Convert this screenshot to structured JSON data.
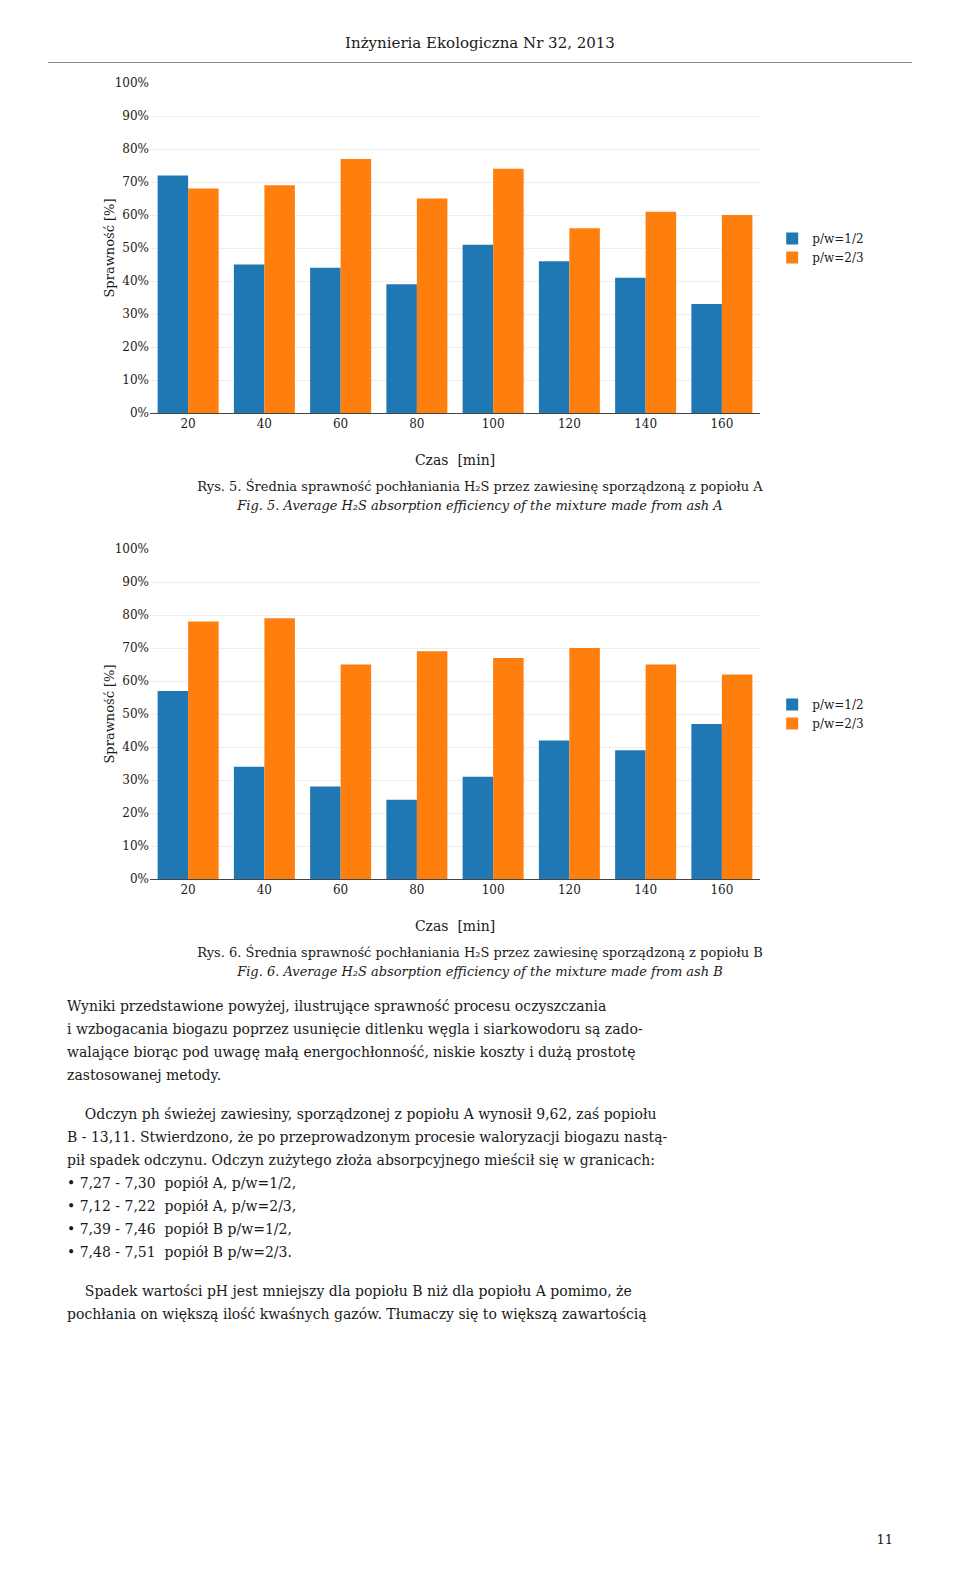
{
  "title": "Inżynieria Ekologiczna Nr 32, 2013",
  "chart_data": [
    {
      "type": "bar",
      "xlabel": "Czas  [min]",
      "ylabel": "Sprawność [%]",
      "categories": [
        "20",
        "40",
        "60",
        "80",
        "100",
        "120",
        "140",
        "160"
      ],
      "series": [
        {
          "name": "p/w=1/2",
          "values": [
            0.72,
            0.45,
            0.44,
            0.39,
            0.51,
            0.46,
            0.41,
            0.33
          ]
        },
        {
          "name": "p/w=2/3",
          "values": [
            0.68,
            0.69,
            0.77,
            0.65,
            0.74,
            0.56,
            0.61,
            0.6
          ]
        }
      ],
      "ylim": [
        0,
        1.0
      ],
      "yticks": [
        {
          "value": 0.0,
          "label": "0%"
        },
        {
          "value": 0.1,
          "label": "10%"
        },
        {
          "value": 0.2,
          "label": "20%"
        },
        {
          "value": 0.3,
          "label": "30%"
        },
        {
          "value": 0.4,
          "label": "40%"
        },
        {
          "value": 0.5,
          "label": "50%"
        },
        {
          "value": 0.6,
          "label": "60%"
        },
        {
          "value": 0.7,
          "label": "70%"
        },
        {
          "value": 0.8,
          "label": "80%"
        },
        {
          "value": 0.9,
          "label": "90%"
        },
        {
          "value": 1.0,
          "label": "100%"
        }
      ],
      "grid": true,
      "legend": "right",
      "annotations": [
        "Rys. 5. Średnia sprawność pochłaniania H₂S przez zawiesinę sporządzoną z popiołu A",
        "Fig. 5. Average H₂S absorption efficiency of the mixture made from ash A"
      ]
    },
    {
      "type": "bar",
      "xlabel": "Czas  [min]",
      "ylabel": "Sprawność [%]",
      "categories": [
        "20",
        "40",
        "60",
        "80",
        "100",
        "120",
        "140",
        "160"
      ],
      "series": [
        {
          "name": "p/w=1/2",
          "values": [
            0.57,
            0.34,
            0.28,
            0.24,
            0.31,
            0.42,
            0.39,
            0.47
          ]
        },
        {
          "name": "p/w=2/3",
          "values": [
            0.78,
            0.79,
            0.65,
            0.69,
            0.67,
            0.7,
            0.65,
            0.62
          ]
        }
      ],
      "ylim": [
        0,
        1.0
      ],
      "yticks": [
        {
          "value": 0.0,
          "label": "0%"
        },
        {
          "value": 0.1,
          "label": "10%"
        },
        {
          "value": 0.2,
          "label": "20%"
        },
        {
          "value": 0.3,
          "label": "30%"
        },
        {
          "value": 0.4,
          "label": "40%"
        },
        {
          "value": 0.5,
          "label": "50%"
        },
        {
          "value": 0.6,
          "label": "60%"
        },
        {
          "value": 0.7,
          "label": "70%"
        },
        {
          "value": 0.8,
          "label": "80%"
        },
        {
          "value": 0.9,
          "label": "90%"
        },
        {
          "value": 1.0,
          "label": "100%"
        }
      ],
      "grid": true,
      "legend": "right",
      "annotations": [
        "Rys. 6. Średnia sprawność pochłaniania H₂S przez zawiesinę sporządzoną z popiołu B",
        "Fig. 6. Average H₂S absorption efficiency of the mixture made from ash B"
      ]
    }
  ],
  "paragraphs": [
    [
      "Wyniki przedstawione powyżej, ilustrujące sprawność procesu oczyszczania",
      "i wzbogacania biogazu poprzez usunięcie ditlenku węgla i siarkowodoru są zado-",
      "walające biorąc pod uwagę małą energochłonność, niskie koszty i dużą prostotę",
      "zastosowanej metody."
    ],
    [
      "    Odczyn ph świeżej zawiesiny, sporządzonej z popiołu A wynosił 9,62, zaś popiołu",
      "B - 13,11. Stwierdzono, że po przeprowadzonym procesie waloryzacji biogazu nastą-",
      "pił spadek odczynu. Odczyn zużytego złoża absorpcyjnego mieścił się w granicach:",
      "• 7,27 - 7,30  popiół A, p/w=1/2,",
      "• 7,12 - 7,22  popiół A, p/w=2/3,",
      "• 7,39 - 7,46  popiół B p/w=1/2,",
      "• 7,48 - 7,51  popiół B p/w=2/3."
    ],
    [
      "    Spadek wartości pH jest mniejszy dla popiołu B niż dla popiołu A pomimo, że",
      "pochłania on większą ilość kwaśnych gazów. Tłumaczy się to większą zawartością"
    ]
  ],
  "page_number": "11"
}
